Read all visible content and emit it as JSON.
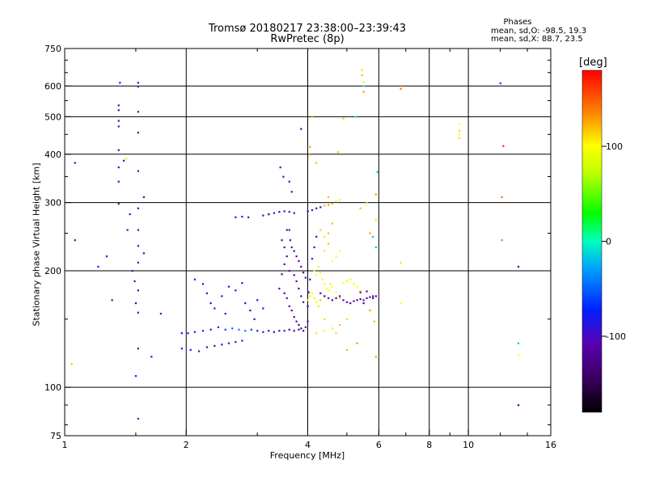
{
  "chart_data": {
    "type": "scatter",
    "title": "Tromsø 20180217 23:38:00–23:39:43",
    "subtitle": "RwPretec (8p)",
    "xlabel": "Frequency [MHz]",
    "ylabel": "Stationary phase Virtual Height [km]",
    "x_scale": "log",
    "y_scale": "log",
    "xlim": [
      1,
      16
    ],
    "ylim": [
      75,
      750
    ],
    "x_ticks": [
      1,
      2,
      4,
      6,
      8,
      10,
      16
    ],
    "x_tick_labels": [
      "1",
      "2",
      "4",
      "6",
      "8",
      "10",
      "16"
    ],
    "x_gridlines": [
      2,
      4,
      6,
      8,
      10
    ],
    "y_ticks": [
      75,
      100,
      200,
      300,
      400,
      500,
      600,
      750
    ],
    "y_tick_labels": [
      "75",
      "100",
      "200",
      "300",
      "400",
      "500",
      "600",
      "750"
    ],
    "y_gridlines": [
      100,
      200,
      300,
      400,
      500,
      600
    ],
    "grid": true,
    "phases_header": "Phases",
    "phases_line1": "mean, sd,O:  -98.5,  19.3",
    "phases_line2": "mean, sd,X:   88.7,  23.5",
    "colorbar": {
      "unit": "[deg]",
      "range": [
        -180,
        180
      ],
      "tick_values": [
        100,
        0,
        -100
      ],
      "tick_labels": [
        "100",
        "0",
        "-100"
      ],
      "colormap": "rainbow (black → purple → blue → cyan → green → yellow → orange → red)"
    },
    "points": [
      [
        1.06,
        380,
        -95
      ],
      [
        1.06,
        240,
        -100
      ],
      [
        1.04,
        115,
        120
      ],
      [
        1.21,
        205,
        -90
      ],
      [
        1.27,
        218,
        -100
      ],
      [
        1.31,
        168,
        -105
      ],
      [
        1.36,
        535,
        -100
      ],
      [
        1.36,
        520,
        -110
      ],
      [
        1.36,
        488,
        -120
      ],
      [
        1.36,
        472,
        -105
      ],
      [
        1.36,
        410,
        -110
      ],
      [
        1.36,
        370,
        -100
      ],
      [
        1.36,
        340,
        -95
      ],
      [
        1.36,
        298,
        -110
      ],
      [
        1.37,
        612,
        -100
      ],
      [
        1.4,
        385,
        -105
      ],
      [
        1.42,
        390,
        110
      ],
      [
        1.43,
        255,
        -100
      ],
      [
        1.45,
        280,
        -95
      ],
      [
        1.47,
        200,
        -110
      ],
      [
        1.49,
        188,
        -100
      ],
      [
        1.5,
        165,
        -120
      ],
      [
        1.5,
        107,
        -95
      ],
      [
        1.52,
        612,
        -100
      ],
      [
        1.52,
        598,
        -110
      ],
      [
        1.52,
        515,
        -100
      ],
      [
        1.52,
        455,
        -120
      ],
      [
        1.52,
        362,
        -100
      ],
      [
        1.52,
        290,
        -95
      ],
      [
        1.52,
        255,
        -110
      ],
      [
        1.52,
        232,
        -100
      ],
      [
        1.52,
        210,
        -95
      ],
      [
        1.52,
        178,
        -105
      ],
      [
        1.52,
        156,
        -100
      ],
      [
        1.52,
        126,
        -120
      ],
      [
        1.52,
        83,
        -110
      ],
      [
        1.57,
        222,
        -100
      ],
      [
        1.57,
        310,
        -100
      ],
      [
        1.64,
        120,
        -95
      ],
      [
        1.73,
        155,
        -100
      ],
      [
        1.95,
        138,
        -80
      ],
      [
        2.02,
        138,
        -75
      ],
      [
        2.1,
        139,
        -70
      ],
      [
        2.2,
        140,
        -70
      ],
      [
        2.3,
        141,
        -80
      ],
      [
        2.4,
        143,
        -70
      ],
      [
        2.5,
        141,
        -60
      ],
      [
        2.6,
        142,
        -50
      ],
      [
        2.7,
        141,
        -40
      ],
      [
        2.8,
        140,
        -45
      ],
      [
        2.9,
        141,
        -60
      ],
      [
        3.0,
        140,
        -100
      ],
      [
        3.1,
        139,
        -105
      ],
      [
        3.2,
        140,
        -110
      ],
      [
        3.3,
        139,
        -100
      ],
      [
        3.4,
        140,
        -110
      ],
      [
        3.5,
        140,
        -100
      ],
      [
        3.6,
        141,
        -100
      ],
      [
        3.7,
        140,
        -110
      ],
      [
        3.8,
        141,
        -110
      ],
      [
        1.95,
        126,
        -80
      ],
      [
        2.05,
        125,
        -80
      ],
      [
        2.15,
        124,
        -80
      ],
      [
        2.25,
        127,
        -85
      ],
      [
        2.35,
        128,
        -90
      ],
      [
        2.45,
        129,
        -90
      ],
      [
        2.55,
        130,
        -95
      ],
      [
        2.65,
        131,
        -100
      ],
      [
        2.75,
        132,
        -100
      ],
      [
        2.1,
        190,
        -90
      ],
      [
        2.2,
        185,
        -80
      ],
      [
        2.25,
        175,
        -95
      ],
      [
        2.3,
        165,
        -100
      ],
      [
        2.35,
        160,
        -90
      ],
      [
        2.45,
        172,
        -85
      ],
      [
        2.5,
        155,
        -90
      ],
      [
        2.55,
        182,
        -75
      ],
      [
        2.65,
        178,
        -80
      ],
      [
        2.75,
        186,
        -85
      ],
      [
        2.8,
        165,
        -90
      ],
      [
        2.88,
        158,
        -80
      ],
      [
        2.95,
        150,
        -95
      ],
      [
        3.0,
        168,
        -85
      ],
      [
        3.1,
        160,
        -90
      ],
      [
        2.65,
        275,
        -80
      ],
      [
        2.75,
        276,
        -80
      ],
      [
        2.85,
        275,
        -80
      ],
      [
        3.1,
        278,
        -90
      ],
      [
        3.2,
        280,
        -100
      ],
      [
        3.3,
        282,
        -100
      ],
      [
        3.4,
        284,
        -100
      ],
      [
        3.5,
        285,
        -110
      ],
      [
        3.6,
        284,
        -100
      ],
      [
        3.7,
        282,
        -100
      ],
      [
        3.2,
        280,
        -110
      ],
      [
        3.42,
        370,
        -110
      ],
      [
        3.48,
        350,
        -100
      ],
      [
        3.6,
        340,
        -95
      ],
      [
        3.65,
        320,
        -90
      ],
      [
        3.85,
        465,
        -120
      ],
      [
        4.05,
        418,
        130
      ],
      [
        4.05,
        398,
        110
      ],
      [
        4.1,
        500,
        130
      ],
      [
        4.2,
        380,
        120
      ],
      [
        3.6,
        255,
        -100
      ],
      [
        3.62,
        240,
        -110
      ],
      [
        3.65,
        230,
        -100
      ],
      [
        3.7,
        225,
        -120
      ],
      [
        3.75,
        218,
        -110
      ],
      [
        3.8,
        212,
        -100
      ],
      [
        3.85,
        205,
        -110
      ],
      [
        3.9,
        198,
        -120
      ],
      [
        3.95,
        192,
        -100
      ],
      [
        3.6,
        200,
        -110
      ],
      [
        3.7,
        195,
        -120
      ],
      [
        3.75,
        188,
        -110
      ],
      [
        3.8,
        180,
        -120
      ],
      [
        3.85,
        172,
        -110
      ],
      [
        3.9,
        166,
        -100
      ],
      [
        3.4,
        180,
        -110
      ],
      [
        3.5,
        175,
        -120
      ],
      [
        3.55,
        170,
        -110
      ],
      [
        3.6,
        162,
        -120
      ],
      [
        3.65,
        158,
        -110
      ],
      [
        3.7,
        152,
        -120
      ],
      [
        3.75,
        148,
        -110
      ],
      [
        3.8,
        145,
        -120
      ],
      [
        3.85,
        142,
        -110
      ],
      [
        3.9,
        140,
        -100
      ],
      [
        3.95,
        143,
        -110
      ],
      [
        4.0,
        148,
        -100
      ],
      [
        4.0,
        162,
        -100
      ],
      [
        4.02,
        176,
        -110
      ],
      [
        4.05,
        190,
        -100
      ],
      [
        4.1,
        215,
        -110
      ],
      [
        4.15,
        230,
        -100
      ],
      [
        4.2,
        245,
        -110
      ],
      [
        3.55,
        255,
        -110
      ],
      [
        3.45,
        240,
        -100
      ],
      [
        3.5,
        230,
        -110
      ],
      [
        3.55,
        218,
        -110
      ],
      [
        3.5,
        208,
        -100
      ],
      [
        3.45,
        196,
        -110
      ],
      [
        4.0,
        285,
        -100
      ],
      [
        4.1,
        287,
        -100
      ],
      [
        4.2,
        290,
        -95
      ],
      [
        4.3,
        292,
        -90
      ],
      [
        4.4,
        295,
        120
      ],
      [
        4.5,
        296,
        130
      ],
      [
        4.6,
        298,
        120
      ],
      [
        4.7,
        302,
        110
      ],
      [
        4.8,
        305,
        105
      ],
      [
        4.5,
        310,
        120
      ],
      [
        4.15,
        200,
        100
      ],
      [
        4.2,
        195,
        95
      ],
      [
        4.25,
        205,
        90
      ],
      [
        4.3,
        198,
        100
      ],
      [
        4.35,
        190,
        100
      ],
      [
        4.4,
        185,
        95
      ],
      [
        4.45,
        180,
        100
      ],
      [
        4.5,
        178,
        100
      ],
      [
        4.55,
        185,
        105
      ],
      [
        4.6,
        182,
        100
      ],
      [
        4.7,
        176,
        100
      ],
      [
        4.8,
        170,
        110
      ],
      [
        4.9,
        186,
        100
      ],
      [
        5.0,
        188,
        95
      ],
      [
        5.1,
        190,
        90
      ],
      [
        5.2,
        185,
        95
      ],
      [
        5.3,
        182,
        100
      ],
      [
        5.4,
        178,
        100
      ],
      [
        4.0,
        168,
        100
      ],
      [
        4.05,
        172,
        95
      ],
      [
        4.1,
        175,
        100
      ],
      [
        4.15,
        170,
        105
      ],
      [
        4.2,
        166,
        100
      ],
      [
        4.25,
        162,
        110
      ],
      [
        4.3,
        168,
        120
      ],
      [
        4.4,
        172,
        130
      ],
      [
        4.6,
        212,
        100
      ],
      [
        4.7,
        218,
        95
      ],
      [
        4.8,
        225,
        100
      ],
      [
        4.5,
        235,
        120
      ],
      [
        4.4,
        245,
        110
      ],
      [
        4.3,
        255,
        115
      ],
      [
        4.6,
        265,
        120
      ],
      [
        4.2,
        138,
        110
      ],
      [
        4.4,
        140,
        100
      ],
      [
        4.6,
        142,
        105
      ],
      [
        4.8,
        145,
        120
      ],
      [
        5.0,
        150,
        110
      ],
      [
        4.4,
        150,
        110
      ],
      [
        4.3,
        175,
        -110
      ],
      [
        4.4,
        172,
        -110
      ],
      [
        4.5,
        170,
        -110
      ],
      [
        4.6,
        168,
        -120
      ],
      [
        4.7,
        170,
        -110
      ],
      [
        4.8,
        172,
        -110
      ],
      [
        4.9,
        168,
        -100
      ],
      [
        5.0,
        166,
        -110
      ],
      [
        5.1,
        165,
        -110
      ],
      [
        5.2,
        167,
        -110
      ],
      [
        5.3,
        168,
        -110
      ],
      [
        5.4,
        169,
        -110
      ],
      [
        5.5,
        168,
        -105
      ],
      [
        5.6,
        170,
        -110
      ],
      [
        5.7,
        171,
        -110
      ],
      [
        5.8,
        170,
        -100
      ],
      [
        5.9,
        172,
        -110
      ],
      [
        5.4,
        176,
        -120
      ],
      [
        5.6,
        177,
        -110
      ],
      [
        5.8,
        172,
        -100
      ],
      [
        5.5,
        165,
        -100
      ],
      [
        5.45,
        660,
        110
      ],
      [
        5.45,
        640,
        120
      ],
      [
        5.5,
        615,
        90
      ],
      [
        5.5,
        600,
        0
      ],
      [
        5.5,
        580,
        130
      ],
      [
        5.25,
        500,
        0
      ],
      [
        4.9,
        495,
        120
      ],
      [
        4.75,
        405,
        120
      ],
      [
        5.4,
        290,
        120
      ],
      [
        5.6,
        300,
        110
      ],
      [
        5.7,
        250,
        130
      ],
      [
        5.9,
        315,
        130
      ],
      [
        5.95,
        360,
        -20
      ],
      [
        5.9,
        270,
        110
      ],
      [
        5.8,
        245,
        -20
      ],
      [
        5.9,
        230,
        -20
      ],
      [
        5.7,
        158,
        130
      ],
      [
        5.9,
        120,
        130
      ],
      [
        5.85,
        148,
        120
      ],
      [
        5.3,
        130,
        130
      ],
      [
        5.0,
        125,
        120
      ],
      [
        4.7,
        138,
        110
      ],
      [
        4.5,
        250,
        120
      ],
      [
        4.4,
        225,
        110
      ],
      [
        6.8,
        600,
        150
      ],
      [
        6.8,
        590,
        140
      ],
      [
        6.8,
        210,
        110
      ],
      [
        6.8,
        165,
        100
      ],
      [
        9.5,
        480,
        100
      ],
      [
        9.5,
        460,
        110
      ],
      [
        9.5,
        450,
        100
      ],
      [
        9.5,
        440,
        110
      ],
      [
        12.0,
        610,
        -60
      ],
      [
        12.2,
        420,
        170
      ],
      [
        12.1,
        310,
        140
      ],
      [
        12.1,
        240,
        140
      ],
      [
        13.3,
        205,
        -100
      ],
      [
        13.3,
        130,
        -20
      ],
      [
        13.3,
        121,
        100
      ],
      [
        13.3,
        90,
        -100
      ]
    ]
  }
}
